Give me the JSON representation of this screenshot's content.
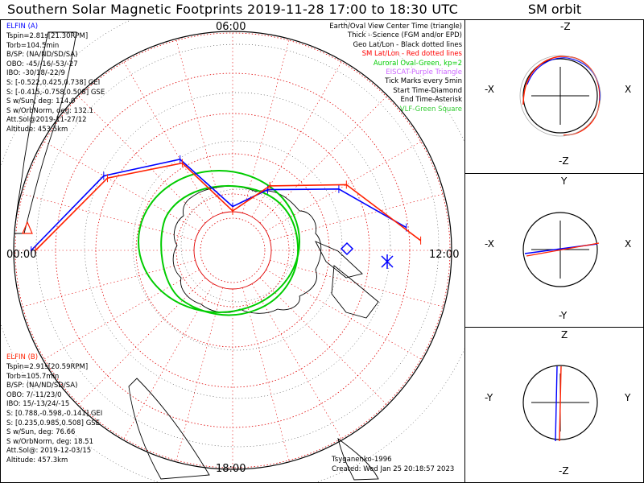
{
  "title": "Southern Solar Magnetic Footprints 2019-11-28 17:00 to 18:30 UTC",
  "sm_title": "SM orbit",
  "colors": {
    "elfin_a": "#0000ff",
    "elfin_b": "#ff2000",
    "oval": "#00cc00",
    "sm_latlon": "#ff0000",
    "eiscat": "#cc66ff",
    "vlf": "#33cc33"
  },
  "ring_labels": {
    "top": "06:00",
    "left": "00:00",
    "right": "12:00",
    "bottom": "18:00"
  },
  "elfin_a": {
    "header": "ELFIN (A)",
    "lines": [
      "Tspin=2.81s[21.30RPM]",
      "Torb=104.5min",
      "B/SP: (NA/ND/SD/SA)",
      "OBO: -45/-16/-53/-27",
      "IBO: -30/18/-22/9",
      "S: [-0.522,0.425,0.738] GEI",
      "S: [-0.415,-0.758,0.508] GSE",
      "S w/Sun, deg: 114.0",
      "S w/OrbNorm, deg: 132.1",
      "Att.Sol@2019-11-27/12",
      "Altitude: 453.5km"
    ]
  },
  "elfin_b": {
    "header": "ELFIN (B)",
    "lines": [
      "Tspin=2.91s[20.59RPM]",
      "Torb=105.7min",
      "B/SP: (NA/ND/SD/SA)",
      "OBO: 7/-11/23/0",
      "IBO: 15/-13/24/-15",
      "S: [0.788,-0.598,-0.141] GEI",
      "S: [0.235,0.985,0.508] GSE",
      "S w/Sun, deg: 76.66",
      "S w/OrbNorm, deg: 18.51",
      "Att.Sol@: 2019-12-03/15",
      "Altitude: 457.3km"
    ]
  },
  "legend": [
    {
      "text": "Earth/Oval View Center Time (triangle)",
      "color": "#000000"
    },
    {
      "text": "Thick - Science (FGM and/or EPD)",
      "color": "#000000"
    },
    {
      "text": "Geo Lat/Lon - Black dotted lines",
      "color": "#000000"
    },
    {
      "text": "SM Lat/Lon - Red dotted lines",
      "color": "#ff0000"
    },
    {
      "text": "Auroral Oval-Green, kp=2",
      "color": "#00cc00"
    },
    {
      "text": "EISCAT-Purple Triangle",
      "color": "#cc66ff"
    },
    {
      "text": "Tick Marks every 5min",
      "color": "#000000"
    },
    {
      "text": "Start Time-Diamond",
      "color": "#000000"
    },
    {
      "text": "End Time-Asterisk",
      "color": "#000000"
    },
    {
      "text": "VLF-Green Square",
      "color": "#33cc33"
    }
  ],
  "credits": {
    "author": "Tsyganenko-1996",
    "created": "Created: Wed Jan 25 20:18:57 2023"
  },
  "panels": [
    {
      "top": "-Z",
      "bottom": "-Z",
      "left": "-X",
      "right": "X"
    },
    {
      "top": "Y",
      "bottom": "-Y",
      "left": "-X",
      "right": "X"
    },
    {
      "top": "Z",
      "bottom": "-Z",
      "left": "-Y",
      "right": "Y"
    }
  ],
  "chart_data": {
    "type": "scatter",
    "description_axes": "Southern hemisphere polar plot, SM magnetic local time around ring, magnetic latitude rings",
    "series": [
      {
        "name": "ELFIN (A)",
        "color": "#0000ff",
        "points_mlt_lat": [
          [
            0.0,
            -44
          ],
          [
            2.0,
            -56
          ],
          [
            4.0,
            -66
          ],
          [
            6.0,
            -80
          ],
          [
            8.0,
            -74
          ],
          [
            10.0,
            -62
          ],
          [
            11.5,
            -50
          ]
        ]
      },
      {
        "name": "ELFIN (B)",
        "color": "#ff2000",
        "points_mlt_lat": [
          [
            0.0,
            -45
          ],
          [
            2.0,
            -57
          ],
          [
            4.0,
            -67
          ],
          [
            6.0,
            -81
          ],
          [
            8.0,
            -73
          ],
          [
            10.0,
            -60
          ],
          [
            11.8,
            -47
          ]
        ]
      }
    ]
  }
}
